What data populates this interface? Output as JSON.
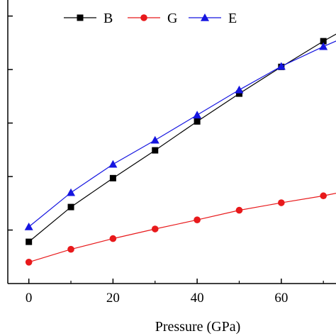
{
  "chart_data": {
    "type": "line",
    "title": "",
    "xlabel": "Pressure (GPa)",
    "ylabel": "",
    "xlim": [
      -5,
      73
    ],
    "ylim": [
      0,
      530
    ],
    "xticks": [
      0,
      20,
      40,
      60
    ],
    "xtick_labels": [
      "0",
      "20",
      "40",
      "60"
    ],
    "yticks": [
      100,
      200,
      300,
      400,
      500
    ],
    "grid": false,
    "legend_position": "top-left",
    "series": [
      {
        "name": "B",
        "color": "#000000",
        "marker": "square",
        "x": [
          0,
          10,
          20,
          30,
          40,
          50,
          60,
          70,
          75
        ],
        "y": [
          78,
          143,
          197,
          249,
          303,
          355,
          405,
          453,
          475
        ]
      },
      {
        "name": "G",
        "color": "#e8191b",
        "marker": "circle",
        "x": [
          0,
          10,
          20,
          30,
          40,
          50,
          60,
          70,
          75
        ],
        "y": [
          40,
          64,
          84,
          102,
          119,
          137,
          151,
          164,
          172
        ]
      },
      {
        "name": "E",
        "color": "#1515e0",
        "marker": "triangle",
        "x": [
          0,
          10,
          20,
          30,
          40,
          50,
          60,
          70,
          75
        ],
        "y": [
          106,
          170,
          223,
          268,
          315,
          362,
          406,
          443,
          460
        ]
      }
    ]
  }
}
